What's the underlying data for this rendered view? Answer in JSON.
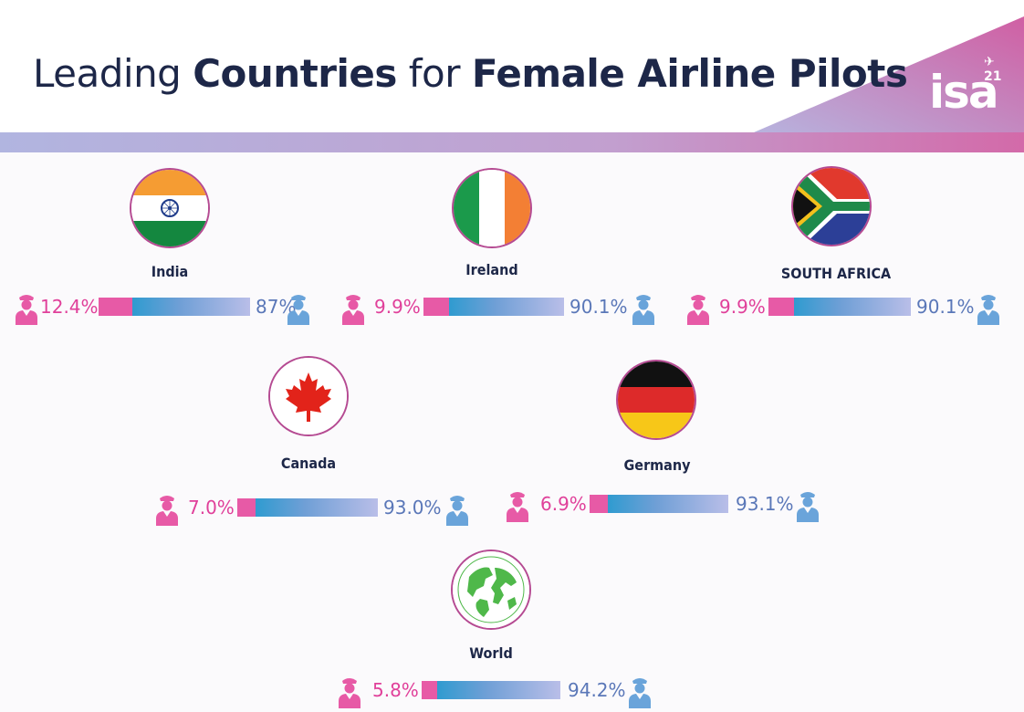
{
  "header": {
    "title_parts": [
      "Leading",
      "Countries",
      "for",
      "Female Airline Pilots"
    ],
    "logo_text": "isa",
    "logo_superscript": "21"
  },
  "colors": {
    "female": "#e75aa6",
    "male_start": "#2f9bd0",
    "male_end": "#b9bee8",
    "title": "#1d2748",
    "banner_start": "#b1b5e0",
    "banner_end": "#d36aa9"
  },
  "countries": [
    {
      "name": "India",
      "female_label": "12.4%",
      "male_label": "87%",
      "flag_icon": "india-flag-icon"
    },
    {
      "name": "Ireland",
      "female_label": "9.9%",
      "male_label": "90.1%",
      "flag_icon": "ireland-flag-icon"
    },
    {
      "name": "SOUTH AFRICA",
      "female_label": "9.9%",
      "male_label": "90.1%",
      "flag_icon": "south-africa-flag-icon"
    },
    {
      "name": "Canada",
      "female_label": "7.0%",
      "male_label": "93.0%",
      "flag_icon": "canada-flag-icon"
    },
    {
      "name": "Germany",
      "female_label": "6.9%",
      "male_label": "93.1%",
      "flag_icon": "germany-flag-icon"
    },
    {
      "name": "World",
      "female_label": "5.8%",
      "male_label": "94.2%",
      "flag_icon": "globe-icon"
    }
  ],
  "chart_data": {
    "type": "bar",
    "stacked": true,
    "orientation": "horizontal",
    "title": "Leading Countries for Female Airline Pilots",
    "categories": [
      "India",
      "Ireland",
      "SOUTH AFRICA",
      "Canada",
      "Germany",
      "World"
    ],
    "series": [
      {
        "values": [
          12.4,
          9.9,
          9.9,
          7.0,
          6.9,
          5.8
        ]
      },
      {
        "values": [
          87,
          90.1,
          90.1,
          93.0,
          93.1,
          94.2
        ]
      }
    ],
    "xlim": [
      0,
      100
    ]
  }
}
